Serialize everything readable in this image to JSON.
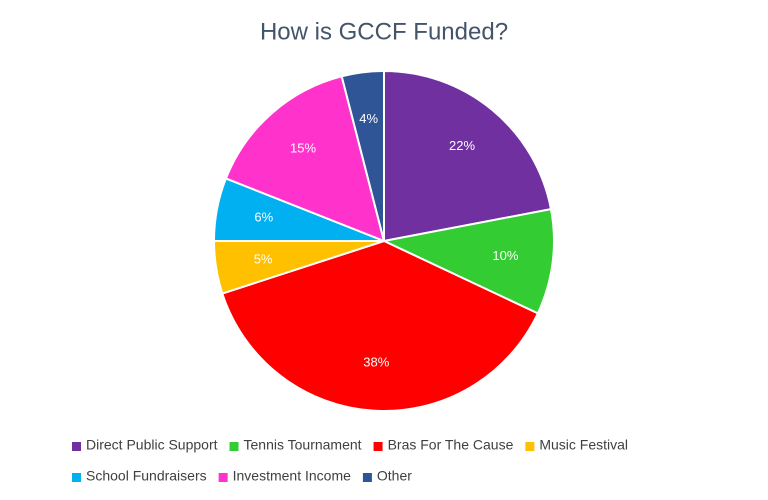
{
  "chart_data": {
    "type": "pie",
    "title": "How is GCCF Funded?",
    "categories": [
      "Direct Public Support",
      "Tennis Tournament",
      "Bras For The Cause",
      "Music Festival",
      "School Fundraisers",
      "Investment Income",
      "Other"
    ],
    "values": [
      22,
      10,
      38,
      5,
      6,
      15,
      4
    ],
    "value_labels": [
      "22%",
      "10%",
      "38%",
      "5%",
      "6%",
      "15%",
      "4%"
    ],
    "colors": [
      "#7030a0",
      "#33cc33",
      "#ff0000",
      "#ffc000",
      "#00b0f0",
      "#ff33cc",
      "#2f5597"
    ],
    "legend": "bottom"
  }
}
